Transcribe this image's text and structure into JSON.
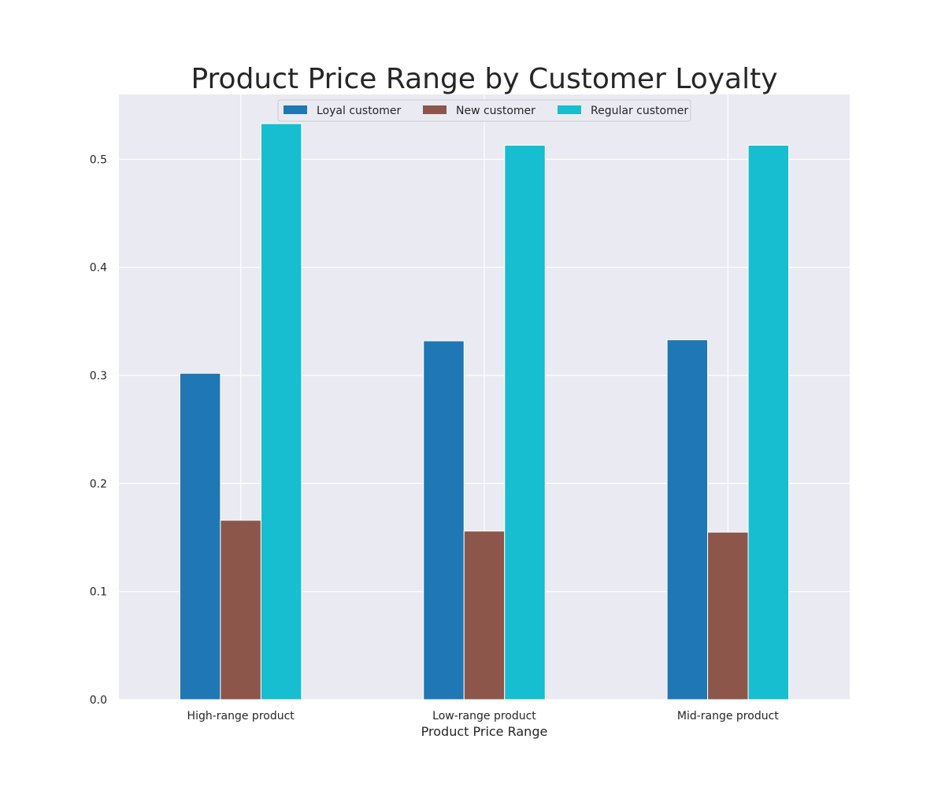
{
  "chart_data": {
    "type": "bar",
    "title": "Product Price Range by Customer Loyalty",
    "xlabel": "Product Price Range",
    "ylabel": "",
    "categories": [
      "High-range product",
      "Low-range product",
      "Mid-range product"
    ],
    "series": [
      {
        "name": "Loyal customer",
        "color": "#1f77b4",
        "values": [
          0.302,
          0.332,
          0.333
        ]
      },
      {
        "name": "New customer",
        "color": "#8c564b",
        "values": [
          0.166,
          0.156,
          0.155
        ]
      },
      {
        "name": "Regular customer",
        "color": "#17becf",
        "values": [
          0.533,
          0.513,
          0.513
        ]
      }
    ],
    "ylim": [
      0,
      0.56
    ],
    "yticks": [
      "0.0",
      "0.1",
      "0.2",
      "0.3",
      "0.4",
      "0.5"
    ],
    "grid": true,
    "legend_position": "top-center",
    "colors": {
      "plot_background": "#eaeaf2",
      "grid": "#ffffff"
    }
  }
}
